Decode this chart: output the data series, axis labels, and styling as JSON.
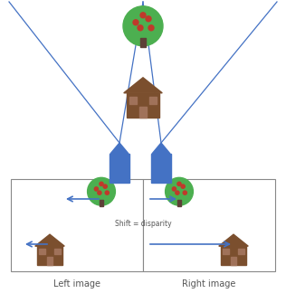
{
  "bg_color": "#ffffff",
  "blue_color": "#4472C4",
  "brown_color": "#7B4F2E",
  "brown_light": "#A0725A",
  "green_color": "#4CAF50",
  "green_dark": "#2E7D32",
  "red_dot": "#C0392B",
  "trunk_color": "#5D4037",
  "line_color": "#4472C4",
  "border_color": "#888888",
  "text_color": "#555555",
  "shift_text": "Shift = disparity",
  "left_label": "Left image",
  "right_label": "Right image",
  "figw": 3.16,
  "figh": 3.24,
  "dpi": 100
}
